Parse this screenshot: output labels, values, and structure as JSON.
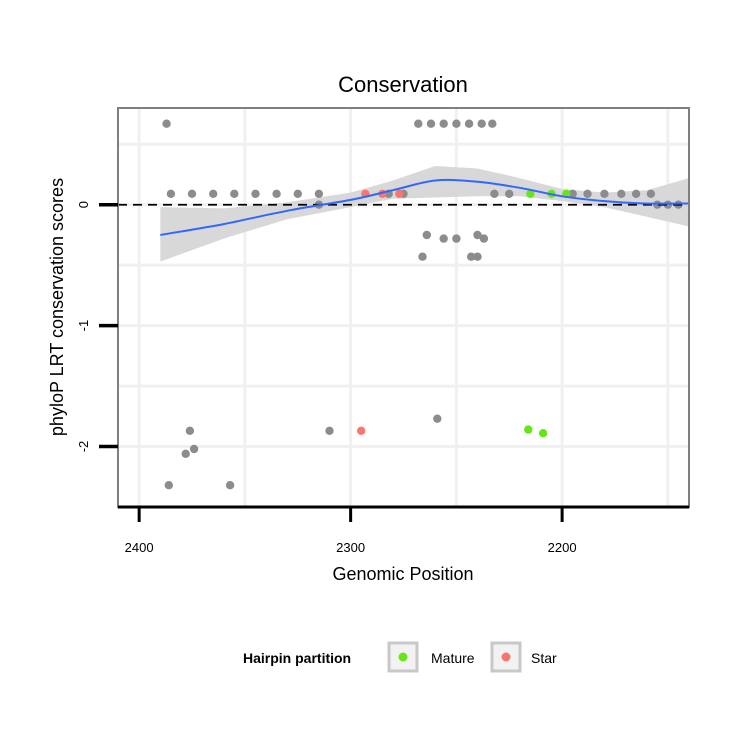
{
  "chart_data": {
    "type": "scatter",
    "title": "Conservation",
    "xlabel": "Genomic Position",
    "ylabel": "phyloP LRT conservation scores",
    "x_reversed": true,
    "xlim": [
      2410,
      2140
    ],
    "ylim": [
      -2.5,
      0.8
    ],
    "x_ticks": [
      2400,
      2300,
      2200
    ],
    "x_tick_labels": [
      "2400",
      "2300",
      "2200"
    ],
    "y_ticks": [
      0,
      -1,
      -2
    ],
    "y_tick_labels": [
      "0",
      "-1",
      "-2"
    ],
    "reference_line": {
      "y": 0,
      "style": "dashed"
    },
    "legend": {
      "title": "Hairpin partition",
      "entries": [
        {
          "label": "Mature",
          "color": "#66e619"
        },
        {
          "label": "Star",
          "color": "#f8766d"
        }
      ]
    },
    "colors": {
      "other": "#8c8c8c",
      "Mature": "#66e619",
      "Star": "#f8766d",
      "smooth": "#3366ff",
      "band": "#d6d6d6"
    },
    "series": [
      {
        "name": "Other",
        "points": [
          [
            2387,
            0.67
          ],
          [
            2385,
            0.09
          ],
          [
            2375,
            0.09
          ],
          [
            2365,
            0.09
          ],
          [
            2355,
            0.09
          ],
          [
            2345,
            0.09
          ],
          [
            2335,
            0.09
          ],
          [
            2325,
            0.09
          ],
          [
            2315,
            0.09
          ],
          [
            2282,
            0.09
          ],
          [
            2275,
            0.09
          ],
          [
            2268,
            0.67
          ],
          [
            2262,
            0.67
          ],
          [
            2256,
            0.67
          ],
          [
            2250,
            0.67
          ],
          [
            2244,
            0.67
          ],
          [
            2238,
            0.67
          ],
          [
            2233,
            0.67
          ],
          [
            2232,
            0.09
          ],
          [
            2225,
            0.09
          ],
          [
            2195,
            0.09
          ],
          [
            2188,
            0.09
          ],
          [
            2180,
            0.09
          ],
          [
            2172,
            0.09
          ],
          [
            2165,
            0.09
          ],
          [
            2158,
            0.09
          ],
          [
            2155,
            0.0
          ],
          [
            2150,
            0.0
          ],
          [
            2145,
            0.0
          ],
          [
            2315,
            0.0
          ],
          [
            2264,
            -0.25
          ],
          [
            2256,
            -0.28
          ],
          [
            2250,
            -0.28
          ],
          [
            2240,
            -0.25
          ],
          [
            2237,
            -0.28
          ],
          [
            2266,
            -0.43
          ],
          [
            2243,
            -0.43
          ],
          [
            2240,
            -0.43
          ],
          [
            2386,
            -2.32
          ],
          [
            2378,
            -2.06
          ],
          [
            2376,
            -1.87
          ],
          [
            2374,
            -2.02
          ],
          [
            2357,
            -2.32
          ],
          [
            2310,
            -1.87
          ],
          [
            2259,
            -1.77
          ]
        ]
      },
      {
        "name": "Mature",
        "points": [
          [
            2215,
            0.09
          ],
          [
            2205,
            0.09
          ],
          [
            2198,
            0.09
          ],
          [
            2216,
            -1.86
          ],
          [
            2209,
            -1.89
          ]
        ]
      },
      {
        "name": "Star",
        "points": [
          [
            2293,
            0.09
          ],
          [
            2285,
            0.09
          ],
          [
            2277,
            0.09
          ],
          [
            2295,
            -1.87
          ]
        ]
      }
    ],
    "smooth": {
      "x": [
        2390,
        2360,
        2330,
        2300,
        2280,
        2260,
        2240,
        2220,
        2200,
        2180,
        2160,
        2140
      ],
      "y": [
        -0.25,
        -0.16,
        -0.05,
        0.04,
        0.12,
        0.2,
        0.19,
        0.14,
        0.07,
        0.03,
        0.01,
        0.01
      ],
      "lower": [
        -0.47,
        -0.28,
        -0.12,
        -0.02,
        0.05,
        0.06,
        0.07,
        0.07,
        0.03,
        -0.02,
        -0.1,
        -0.18
      ],
      "upper": [
        -0.02,
        -0.03,
        0.02,
        0.1,
        0.2,
        0.32,
        0.3,
        0.22,
        0.13,
        0.1,
        0.12,
        0.22
      ]
    }
  }
}
